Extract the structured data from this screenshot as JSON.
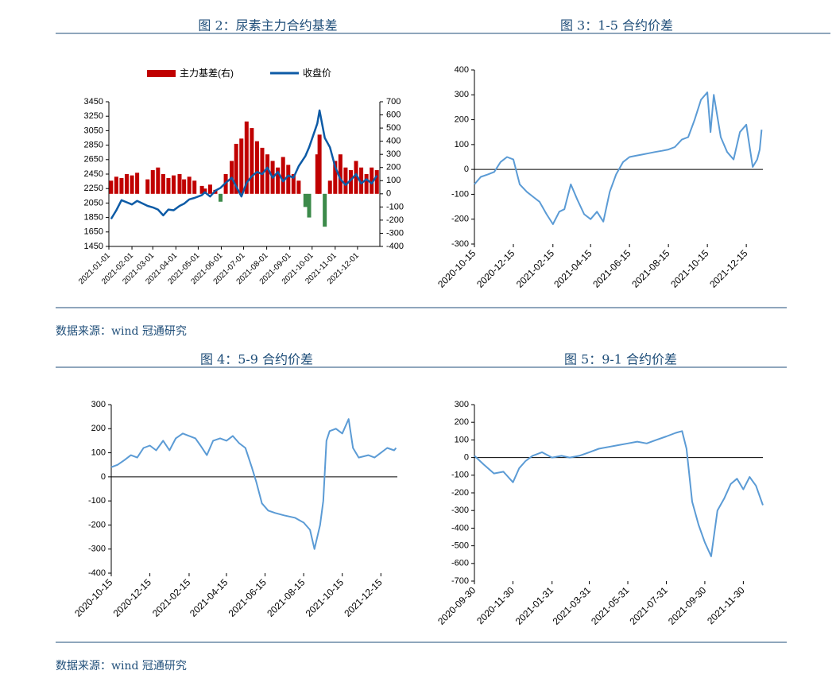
{
  "chart_data": [
    {
      "type": "combo",
      "title": "图 2：尿素主力合约基差",
      "x": [
        "2021-01-04",
        "2021-01-11",
        "2021-01-18",
        "2021-01-25",
        "2021-02-01",
        "2021-02-08",
        "2021-02-22",
        "2021-03-01",
        "2021-03-08",
        "2021-03-15",
        "2021-03-22",
        "2021-03-29",
        "2021-04-06",
        "2021-04-12",
        "2021-04-19",
        "2021-04-26",
        "2021-05-06",
        "2021-05-10",
        "2021-05-17",
        "2021-05-24",
        "2021-05-31",
        "2021-06-07",
        "2021-06-15",
        "2021-06-21",
        "2021-06-28",
        "2021-07-05",
        "2021-07-12",
        "2021-07-19",
        "2021-07-26",
        "2021-08-02",
        "2021-08-09",
        "2021-08-16",
        "2021-08-23",
        "2021-08-30",
        "2021-09-06",
        "2021-09-13",
        "2021-09-22",
        "2021-09-27",
        "2021-10-08",
        "2021-10-11",
        "2021-10-18",
        "2021-10-25",
        "2021-11-01",
        "2021-11-08",
        "2021-11-15",
        "2021-11-22",
        "2021-11-29",
        "2021-12-06",
        "2021-12-13",
        "2021-12-20",
        "2021-12-27"
      ],
      "xlim": [
        "2021-01-01",
        "2021-12-31"
      ],
      "xticks": [
        "2021-01-01",
        "2021-02-01",
        "2021-03-01",
        "2021-04-01",
        "2021-05-01",
        "2021-06-01",
        "2021-07-01",
        "2021-08-01",
        "2021-09-01",
        "2021-10-01",
        "2021-11-01",
        "2021-12-01"
      ],
      "ylim": [
        1450,
        3450
      ],
      "yticks": [
        1450,
        1650,
        1850,
        2050,
        2250,
        2450,
        2650,
        2850,
        3050,
        3250,
        3450
      ],
      "y2lim": [
        -400,
        700
      ],
      "y2ticks": [
        -400,
        -300,
        -200,
        -100,
        0,
        100,
        200,
        300,
        400,
        500,
        600,
        700
      ],
      "series": [
        {
          "name": "主力基差(右)",
          "type": "bar",
          "axis": "y2",
          "color": "#c00000",
          "negative_color": "#3c8a4a",
          "values": [
            100,
            130,
            120,
            150,
            140,
            160,
            110,
            180,
            200,
            150,
            120,
            140,
            150,
            110,
            130,
            100,
            60,
            40,
            70,
            30,
            -60,
            150,
            250,
            380,
            420,
            550,
            500,
            400,
            350,
            300,
            250,
            200,
            280,
            220,
            150,
            100,
            -100,
            -180,
            300,
            450,
            -250,
            100,
            250,
            300,
            200,
            180,
            250,
            200,
            150,
            200,
            180
          ]
        },
        {
          "name": "收盘价",
          "type": "line",
          "color": "#0d5ba6",
          "values": [
            1830,
            1950,
            2090,
            2060,
            2030,
            2080,
            2010,
            1990,
            1960,
            1880,
            1960,
            1950,
            2010,
            2040,
            2100,
            2120,
            2160,
            2200,
            2140,
            2220,
            2260,
            2330,
            2400,
            2280,
            2140,
            2330,
            2420,
            2480,
            2450,
            2540,
            2400,
            2480,
            2350,
            2430,
            2400,
            2560,
            2700,
            2820,
            3150,
            3330,
            2950,
            2820,
            2550,
            2380,
            2300,
            2370,
            2450,
            2320,
            2380,
            2320,
            2430
          ]
        }
      ]
    },
    {
      "type": "line",
      "title": "图 3：1-5 合约价差",
      "x": [
        "2020-10-15",
        "2020-10-25",
        "2020-11-05",
        "2020-11-15",
        "2020-11-25",
        "2020-12-05",
        "2020-12-15",
        "2020-12-25",
        "2021-01-05",
        "2021-01-15",
        "2021-01-25",
        "2021-02-05",
        "2021-02-15",
        "2021-02-25",
        "2021-03-05",
        "2021-03-15",
        "2021-03-25",
        "2021-04-05",
        "2021-04-15",
        "2021-04-25",
        "2021-05-05",
        "2021-05-15",
        "2021-05-25",
        "2021-06-05",
        "2021-06-15",
        "2021-06-25",
        "2021-07-05",
        "2021-07-15",
        "2021-07-25",
        "2021-08-05",
        "2021-08-15",
        "2021-08-25",
        "2021-09-05",
        "2021-09-15",
        "2021-09-25",
        "2021-10-05",
        "2021-10-15",
        "2021-10-20",
        "2021-10-25",
        "2021-11-05",
        "2021-11-15",
        "2021-11-25",
        "2021-12-05",
        "2021-12-15",
        "2021-12-25",
        "2022-01-01",
        "2022-01-05",
        "2022-01-08"
      ],
      "xlim": [
        "2020-10-15",
        "2022-01-10"
      ],
      "xticks": [
        "2020-10-15",
        "2020-12-15",
        "2021-02-15",
        "2021-04-15",
        "2021-06-15",
        "2021-08-15",
        "2021-10-15",
        "2021-12-15"
      ],
      "ylim": [
        -300,
        400
      ],
      "yticks": [
        -300,
        -200,
        -100,
        0,
        100,
        200,
        300,
        400
      ],
      "series": [
        {
          "color": "#5b9bd5",
          "values": [
            -60,
            -30,
            -20,
            -10,
            30,
            50,
            40,
            -60,
            -90,
            -110,
            -130,
            -180,
            -220,
            -170,
            -160,
            -60,
            -120,
            -180,
            -200,
            -170,
            -210,
            -90,
            -20,
            30,
            50,
            55,
            60,
            65,
            70,
            75,
            80,
            90,
            120,
            130,
            200,
            280,
            310,
            150,
            300,
            130,
            70,
            40,
            150,
            180,
            10,
            40,
            80,
            160
          ]
        }
      ]
    },
    {
      "type": "line",
      "title": "图 4：5-9 合约价差",
      "x": [
        "2020-10-15",
        "2020-10-25",
        "2020-11-05",
        "2020-11-15",
        "2020-11-25",
        "2020-12-05",
        "2020-12-15",
        "2020-12-25",
        "2021-01-05",
        "2021-01-15",
        "2021-01-25",
        "2021-02-05",
        "2021-02-15",
        "2021-02-25",
        "2021-03-05",
        "2021-03-15",
        "2021-03-25",
        "2021-04-05",
        "2021-04-15",
        "2021-04-25",
        "2021-05-05",
        "2021-05-15",
        "2021-05-25",
        "2021-06-01",
        "2021-06-10",
        "2021-06-20",
        "2021-07-01",
        "2021-07-15",
        "2021-08-01",
        "2021-08-15",
        "2021-08-25",
        "2021-09-01",
        "2021-09-10",
        "2021-09-15",
        "2021-09-20",
        "2021-09-25",
        "2021-10-05",
        "2021-10-15",
        "2021-10-25",
        "2021-11-01",
        "2021-11-10",
        "2021-11-25",
        "2021-12-05",
        "2021-12-15",
        "2021-12-25",
        "2022-01-05",
        "2022-01-08"
      ],
      "xlim": [
        "2020-10-15",
        "2022-01-10"
      ],
      "xticks": [
        "2020-10-15",
        "2020-12-15",
        "2021-02-15",
        "2021-04-15",
        "2021-06-15",
        "2021-08-15",
        "2021-10-15",
        "2021-12-15"
      ],
      "ylim": [
        -400,
        300
      ],
      "yticks": [
        -400,
        -300,
        -200,
        -100,
        0,
        100,
        200,
        300
      ],
      "series": [
        {
          "color": "#5b9bd5",
          "values": [
            40,
            50,
            70,
            90,
            80,
            120,
            130,
            110,
            150,
            110,
            160,
            180,
            170,
            160,
            130,
            90,
            150,
            160,
            150,
            170,
            140,
            120,
            40,
            -20,
            -110,
            -140,
            -150,
            -160,
            -170,
            -190,
            -220,
            -300,
            -200,
            -100,
            150,
            190,
            200,
            180,
            240,
            120,
            80,
            90,
            80,
            100,
            120,
            110,
            120
          ]
        }
      ]
    },
    {
      "type": "line",
      "title": "图 5：9-1 合约价差",
      "x": [
        "2020-09-30",
        "2020-10-15",
        "2020-10-31",
        "2020-11-15",
        "2020-11-30",
        "2020-12-10",
        "2020-12-20",
        "2020-12-31",
        "2021-01-15",
        "2021-01-31",
        "2021-02-15",
        "2021-02-28",
        "2021-03-15",
        "2021-03-31",
        "2021-04-15",
        "2021-04-30",
        "2021-05-15",
        "2021-05-31",
        "2021-06-15",
        "2021-06-30",
        "2021-07-15",
        "2021-07-31",
        "2021-08-15",
        "2021-08-25",
        "2021-09-01",
        "2021-09-10",
        "2021-09-20",
        "2021-09-30",
        "2021-10-10",
        "2021-10-20",
        "2021-10-31",
        "2021-11-10",
        "2021-11-20",
        "2021-11-30",
        "2021-12-10",
        "2021-12-20",
        "2021-12-31"
      ],
      "xlim": [
        "2020-09-30",
        "2021-12-31"
      ],
      "xticks": [
        "2020-09-30",
        "2020-11-30",
        "2021-01-31",
        "2021-03-31",
        "2021-05-31",
        "2021-07-31",
        "2021-09-30",
        "2021-11-30"
      ],
      "ylim": [
        -700,
        300
      ],
      "yticks": [
        -700,
        -600,
        -500,
        -400,
        -300,
        -200,
        -100,
        0,
        100,
        200,
        300
      ],
      "series": [
        {
          "color": "#5b9bd5",
          "values": [
            10,
            -40,
            -90,
            -80,
            -140,
            -60,
            -20,
            10,
            30,
            0,
            10,
            0,
            10,
            30,
            50,
            60,
            70,
            80,
            90,
            80,
            100,
            120,
            140,
            150,
            50,
            -250,
            -380,
            -480,
            -560,
            -300,
            -230,
            -150,
            -120,
            -180,
            -110,
            -160,
            -270
          ]
        }
      ]
    }
  ],
  "notes": [
    "数据来源：wind 冠通研究",
    "数据来源：wind 冠通研究"
  ]
}
